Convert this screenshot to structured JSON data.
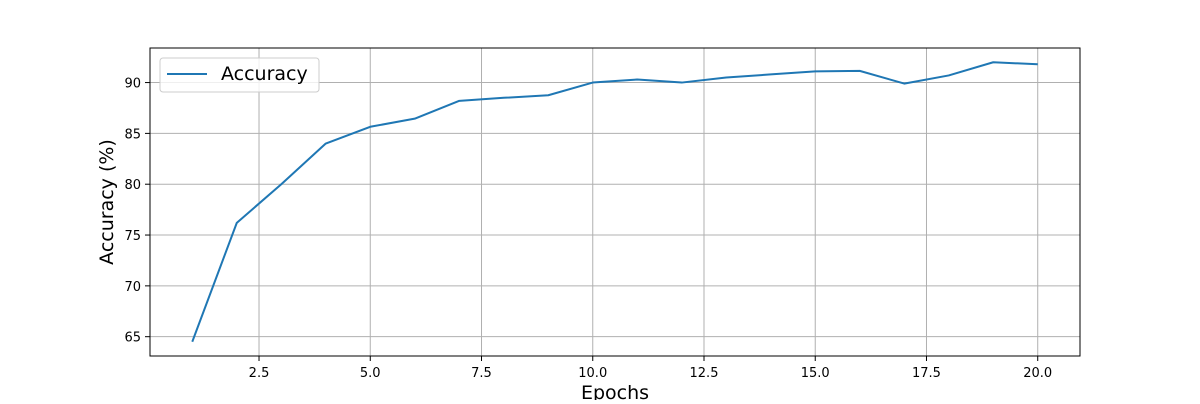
{
  "chart_data": {
    "type": "line",
    "title": "",
    "xlabel": "Epochs",
    "ylabel": "Accuracy (%)",
    "xlim": [
      0.05,
      20.95
    ],
    "ylim": [
      63.1,
      93.4
    ],
    "xticks": [
      2.5,
      5.0,
      7.5,
      10.0,
      12.5,
      15.0,
      17.5,
      20.0
    ],
    "xtick_labels": [
      "2.5",
      "5.0",
      "7.5",
      "10.0",
      "12.5",
      "15.0",
      "17.5",
      "20.0"
    ],
    "yticks": [
      65,
      70,
      75,
      80,
      85,
      90
    ],
    "ytick_labels": [
      "65",
      "70",
      "75",
      "80",
      "85",
      "90"
    ],
    "grid": true,
    "legend_position": "upper-left",
    "series": [
      {
        "name": "Accuracy",
        "color": "#1f77b4",
        "x": [
          1,
          2,
          3,
          4,
          5,
          6,
          7,
          8,
          9,
          10,
          11,
          12,
          13,
          14,
          15,
          16,
          17,
          18,
          19,
          20
        ],
        "y": [
          64.5,
          76.2,
          80.0,
          84.0,
          85.65,
          86.45,
          88.2,
          88.5,
          88.75,
          90.0,
          90.3,
          90.0,
          90.5,
          90.8,
          91.1,
          91.15,
          89.9,
          90.7,
          92.0,
          91.8
        ]
      }
    ]
  }
}
